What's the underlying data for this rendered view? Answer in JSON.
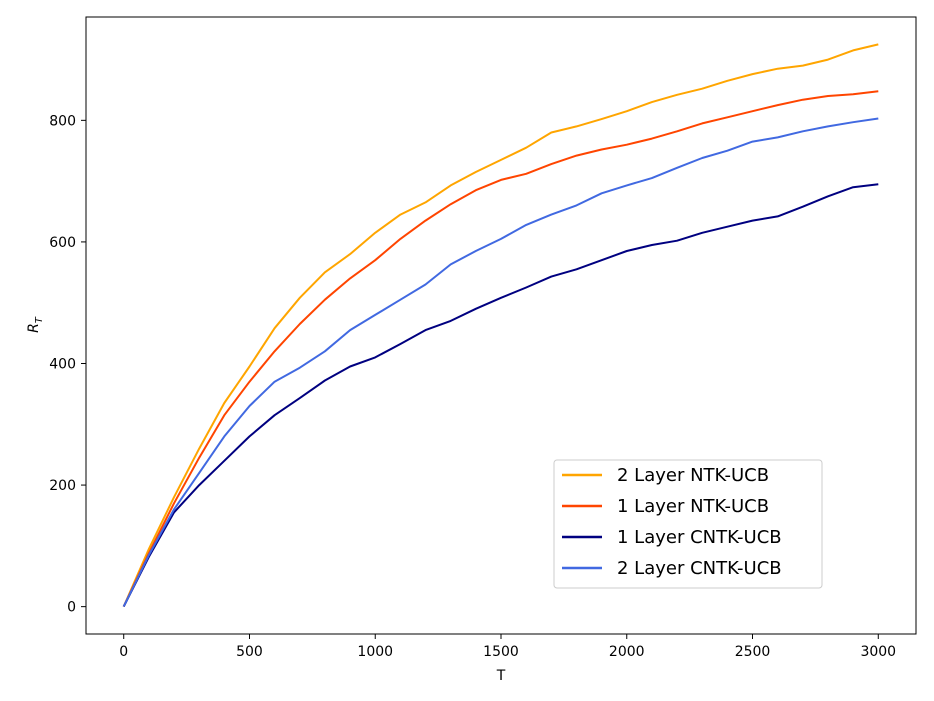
{
  "chart_data": {
    "type": "line",
    "xlabel": "T",
    "ylabel": "R",
    "ylabel_subscript": "T",
    "xlim": [
      -150,
      3150
    ],
    "ylim": [
      -45,
      970
    ],
    "xticks": [
      0,
      500,
      1000,
      1500,
      2000,
      2500,
      3000
    ],
    "yticks": [
      0,
      200,
      400,
      600,
      800
    ],
    "grid": false,
    "legend_position": "lower-right",
    "x": [
      0,
      100,
      200,
      300,
      400,
      500,
      600,
      700,
      800,
      900,
      1000,
      1100,
      1200,
      1300,
      1400,
      1500,
      1600,
      1700,
      1800,
      1900,
      2000,
      2100,
      2200,
      2300,
      2400,
      2500,
      2600,
      2700,
      2800,
      2900,
      3000
    ],
    "series": [
      {
        "name": "2 Layer NTK-UCB",
        "color": "#ffa500",
        "values": [
          0,
          95,
          180,
          260,
          335,
          395,
          458,
          508,
          550,
          580,
          615,
          645,
          665,
          693,
          715,
          735,
          755,
          780,
          790,
          802,
          815,
          830,
          842,
          852,
          865,
          876,
          885,
          890,
          900,
          915,
          925
        ]
      },
      {
        "name": "1 Layer NTK-UCB",
        "color": "#ff4500",
        "values": [
          0,
          88,
          170,
          245,
          315,
          370,
          420,
          465,
          505,
          540,
          570,
          605,
          635,
          662,
          685,
          702,
          712,
          728,
          742,
          752,
          760,
          770,
          782,
          795,
          805,
          815,
          825,
          834,
          840,
          843,
          848
        ]
      },
      {
        "name": "1 Layer CNTK-UCB",
        "color": "#000080",
        "values": [
          0,
          82,
          155,
          200,
          240,
          280,
          315,
          343,
          372,
          395,
          410,
          432,
          455,
          470,
          490,
          508,
          525,
          543,
          555,
          570,
          585,
          595,
          602,
          615,
          625,
          635,
          642,
          658,
          675,
          690,
          695
        ]
      },
      {
        "name": "2 Layer CNTK-UCB",
        "color": "#4169e1",
        "values": [
          0,
          85,
          160,
          220,
          280,
          330,
          370,
          393,
          420,
          455,
          480,
          505,
          530,
          563,
          585,
          605,
          628,
          645,
          660,
          680,
          693,
          705,
          722,
          738,
          750,
          765,
          772,
          782,
          790,
          797,
          803
        ]
      }
    ]
  }
}
